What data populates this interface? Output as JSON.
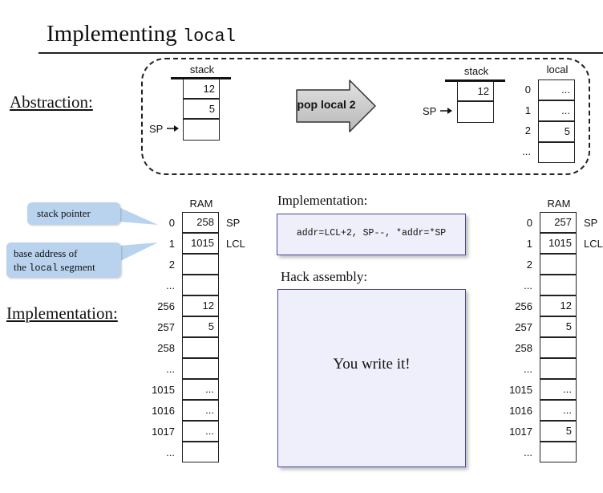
{
  "title": {
    "text": "Implementing",
    "code": "local"
  },
  "sections": {
    "abstraction": "Abstraction:",
    "implementation": "Implementation:"
  },
  "abstraction": {
    "before_stack": {
      "header": "stack",
      "cells": [
        "12",
        "5",
        ""
      ],
      "sp_label": "SP"
    },
    "arrow_label": "pop local 2",
    "after_stack": {
      "header": "stack",
      "cells": [
        "12",
        ""
      ],
      "sp_label": "SP"
    },
    "local": {
      "header": "local",
      "indices": [
        "0",
        "1",
        "2",
        "..."
      ],
      "cells": [
        "...",
        "...",
        "5",
        ""
      ]
    }
  },
  "callouts": {
    "stack_pointer": "stack pointer",
    "base_address_line1": "base address of",
    "base_address_the": "the",
    "base_address_code": "local",
    "base_address_line2": "segment"
  },
  "ram_before": {
    "header": "RAM",
    "rows": [
      {
        "index": "0",
        "value": "258",
        "label": "SP"
      },
      {
        "index": "1",
        "value": "1015",
        "label": "LCL"
      },
      {
        "index": "2",
        "value": "",
        "label": ""
      },
      {
        "index": "...",
        "value": "",
        "label": ""
      },
      {
        "index": "256",
        "value": "12",
        "label": ""
      },
      {
        "index": "257",
        "value": "5",
        "label": ""
      },
      {
        "index": "258",
        "value": "",
        "label": ""
      },
      {
        "index": "...",
        "value": "",
        "label": ""
      },
      {
        "index": "1015",
        "value": "...",
        "label": ""
      },
      {
        "index": "1016",
        "value": "...",
        "label": ""
      },
      {
        "index": "1017",
        "value": "...",
        "label": ""
      },
      {
        "index": "...",
        "value": "",
        "label": ""
      }
    ]
  },
  "ram_after": {
    "header": "RAM",
    "rows": [
      {
        "index": "0",
        "value": "257",
        "label": "SP"
      },
      {
        "index": "1",
        "value": "1015",
        "label": "LCL"
      },
      {
        "index": "2",
        "value": "",
        "label": ""
      },
      {
        "index": "...",
        "value": "",
        "label": ""
      },
      {
        "index": "256",
        "value": "12",
        "label": ""
      },
      {
        "index": "257",
        "value": "5",
        "label": ""
      },
      {
        "index": "258",
        "value": "",
        "label": ""
      },
      {
        "index": "...",
        "value": "",
        "label": ""
      },
      {
        "index": "1015",
        "value": "...",
        "label": ""
      },
      {
        "index": "1016",
        "value": "...",
        "label": ""
      },
      {
        "index": "1017",
        "value": "5",
        "label": ""
      },
      {
        "index": "...",
        "value": "",
        "label": ""
      }
    ]
  },
  "implementation_panel": {
    "label": "Implementation:",
    "code": "addr=LCL+2, SP--, *addr=*SP"
  },
  "hack_panel": {
    "label": "Hack assembly:",
    "text": "You write it!"
  },
  "colors": {
    "callout_bg": "#b9d3ee",
    "panel_bg": "#efeffb",
    "panel_border": "#4a4aa0",
    "arrow_fill": "#c8c8c8"
  }
}
